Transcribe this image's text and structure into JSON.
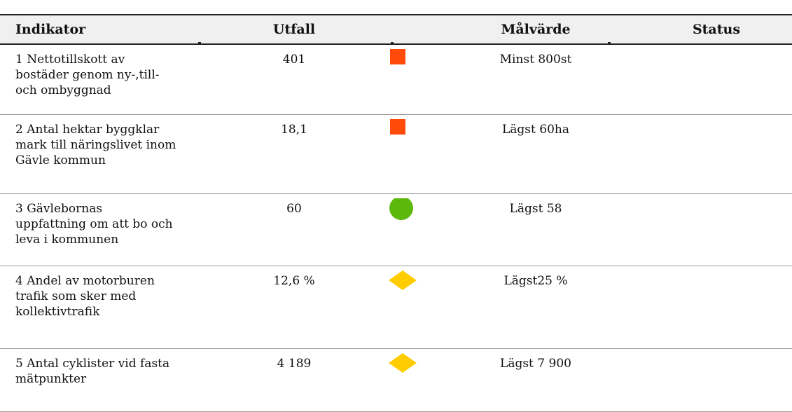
{
  "table": {
    "headers": [
      "Indikator",
      "Utfall",
      "Målvärde",
      "Status"
    ],
    "rows": [
      [
        "1 Nettotillskott av bostäder genom ny-,till- och ombyggnad",
        "401",
        "Minst 800st"
      ],
      [
        "2 Antal hektar byggklar mark till näringslivet inom Gävle kommun",
        "18,1",
        "Lägst 60ha"
      ],
      [
        "3 Gävlebornas uppfattning om att bo och leva i kommunen",
        "60",
        "Lägst 58"
      ],
      [
        "4 Andel av motorburen trafik som sker med kollektivtrafik",
        "12,6 %",
        "Lägst25 %"
      ],
      [
        "5 Antal cyklister vid fasta mätpunkter",
        "4 189",
        "Lägst 7 900"
      ]
    ]
  }
}
